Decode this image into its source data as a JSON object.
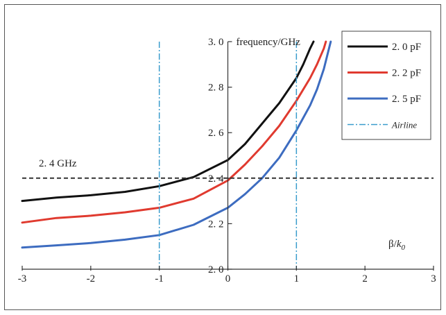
{
  "chart_data": {
    "type": "line",
    "title": "",
    "xlabel": "β/k0",
    "xlabel_main": "β/",
    "xlabel_sub_base": "k",
    "xlabel_sub_index": "0",
    "ylabel": "frequency/GHz",
    "xlim": [
      -3,
      3
    ],
    "ylim": [
      2.0,
      3.0
    ],
    "x_ticks": [
      -3,
      -2,
      -1,
      0,
      1,
      2,
      3
    ],
    "x_tick_labels": [
      "-3",
      "-2",
      "-1",
      "0",
      "1",
      "2",
      "3"
    ],
    "y_ticks": [
      2.0,
      2.2,
      2.4,
      2.6,
      2.8,
      3.0
    ],
    "y_tick_labels": [
      "2. 0",
      "2. 2",
      "2. 4",
      "2. 6",
      "2. 8",
      "3. 0"
    ],
    "grid": false,
    "legend_position": "top-right",
    "series": [
      {
        "name": "2. 0 pF",
        "color": "#111111",
        "style": "solid",
        "points": [
          [
            -3,
            2.3
          ],
          [
            -2.5,
            2.315
          ],
          [
            -2,
            2.325
          ],
          [
            -1.5,
            2.34
          ],
          [
            -1,
            2.365
          ],
          [
            -0.5,
            2.405
          ],
          [
            0,
            2.48
          ],
          [
            0.25,
            2.55
          ],
          [
            0.5,
            2.64
          ],
          [
            0.75,
            2.73
          ],
          [
            1.0,
            2.84
          ],
          [
            1.1,
            2.9
          ],
          [
            1.2,
            2.97
          ],
          [
            1.25,
            3.0
          ]
        ]
      },
      {
        "name": "2. 2 pF",
        "color": "#e03a2f",
        "style": "solid",
        "points": [
          [
            -3,
            2.205
          ],
          [
            -2.5,
            2.225
          ],
          [
            -2,
            2.235
          ],
          [
            -1.5,
            2.25
          ],
          [
            -1,
            2.27
          ],
          [
            -0.5,
            2.31
          ],
          [
            0,
            2.39
          ],
          [
            0.25,
            2.46
          ],
          [
            0.5,
            2.54
          ],
          [
            0.75,
            2.63
          ],
          [
            1.0,
            2.74
          ],
          [
            1.2,
            2.84
          ],
          [
            1.3,
            2.9
          ],
          [
            1.4,
            2.97
          ],
          [
            1.43,
            3.0
          ]
        ]
      },
      {
        "name": "2. 5 pF",
        "color": "#3d6cc0",
        "style": "solid",
        "points": [
          [
            -3,
            2.095
          ],
          [
            -2.5,
            2.105
          ],
          [
            -2,
            2.115
          ],
          [
            -1.5,
            2.13
          ],
          [
            -1,
            2.15
          ],
          [
            -0.5,
            2.195
          ],
          [
            0,
            2.27
          ],
          [
            0.25,
            2.33
          ],
          [
            0.5,
            2.4
          ],
          [
            0.75,
            2.49
          ],
          [
            1.0,
            2.61
          ],
          [
            1.2,
            2.72
          ],
          [
            1.3,
            2.79
          ],
          [
            1.4,
            2.88
          ],
          [
            1.5,
            3.0
          ]
        ]
      }
    ],
    "airline": {
      "name": "Airline",
      "color": "#3a9ccc",
      "x_values": [
        -1,
        1
      ]
    },
    "reference_line": {
      "label": "2. 4 GHz",
      "y": 2.4,
      "color": "#333333"
    }
  }
}
